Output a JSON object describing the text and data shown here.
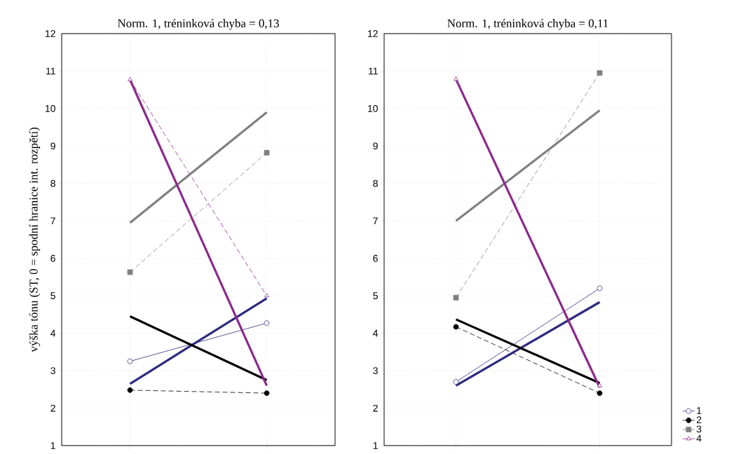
{
  "chart_data": [
    {
      "type": "line",
      "title": "Norm. 1, tréninková chyba = 0,13",
      "ylabel": "výška tónu (ST, 0 = spodní hranice int. rozpětí)",
      "categories": [
        null,
        null
      ],
      "ylim": [
        1,
        12
      ],
      "yticks": [
        1,
        2,
        3,
        4,
        5,
        6,
        7,
        8,
        9,
        10,
        11,
        12
      ],
      "grid": true,
      "series": [
        {
          "color": "#2e2a80",
          "values": [
            3.25,
            4.27
          ],
          "marker": "circle",
          "line_style": "solid"
        },
        {
          "color": "#000000",
          "values": [
            2.48,
            2.4
          ],
          "marker": "circle",
          "line_style": "dashed"
        },
        {
          "color": "#808080",
          "values": [
            5.63,
            8.82
          ],
          "marker": "square",
          "line_style": "dashed"
        },
        {
          "color": "#8b2a8b",
          "values": [
            10.77,
            5.0
          ],
          "marker": "triangle",
          "line_style": "dashed"
        },
        {
          "color": "#2e2a80",
          "values": [
            2.65,
            4.93
          ],
          "marker": "none",
          "line_style": "solid"
        },
        {
          "color": "#000000",
          "values": [
            4.45,
            2.75
          ],
          "marker": "none",
          "line_style": "solid"
        },
        {
          "color": "#808080",
          "values": [
            6.95,
            9.9
          ],
          "marker": "none",
          "line_style": "solid"
        },
        {
          "color": "#8b2a8b",
          "values": [
            10.77,
            2.6
          ],
          "marker": "none",
          "line_style": "solid"
        }
      ]
    },
    {
      "type": "line",
      "title": "Norm. 1, tréninková chyba = 0,11",
      "categories": [
        null,
        null
      ],
      "ylim": [
        1,
        12
      ],
      "yticks": [
        1,
        2,
        3,
        4,
        5,
        6,
        7,
        8,
        9,
        10,
        11,
        12
      ],
      "grid": true,
      "legend": "bottom right",
      "series": [
        {
          "name": "1",
          "color": "#2e2a80",
          "values": [
            2.7,
            5.2
          ],
          "marker": "circle",
          "line_style": "solid"
        },
        {
          "name": "2",
          "color": "#000000",
          "values": [
            4.17,
            2.4
          ],
          "marker": "circle",
          "line_style": "dashed"
        },
        {
          "name": "3",
          "color": "#808080",
          "values": [
            4.95,
            10.95
          ],
          "marker": "square",
          "line_style": "dashed"
        },
        {
          "name": "4",
          "color": "#8b2a8b",
          "values": [
            10.78,
            2.6
          ],
          "marker": "triangle",
          "line_style": "dashed"
        },
        {
          "color": "#2e2a80",
          "values": [
            2.6,
            4.83
          ],
          "marker": "none",
          "line_style": "solid"
        },
        {
          "color": "#000000",
          "values": [
            4.37,
            2.67
          ],
          "marker": "none",
          "line_style": "solid"
        },
        {
          "color": "#808080",
          "values": [
            7.0,
            9.95
          ],
          "marker": "none",
          "line_style": "solid"
        },
        {
          "color": "#8b2a8b",
          "values": [
            10.78,
            2.55
          ],
          "marker": "none",
          "line_style": "solid"
        }
      ]
    }
  ]
}
